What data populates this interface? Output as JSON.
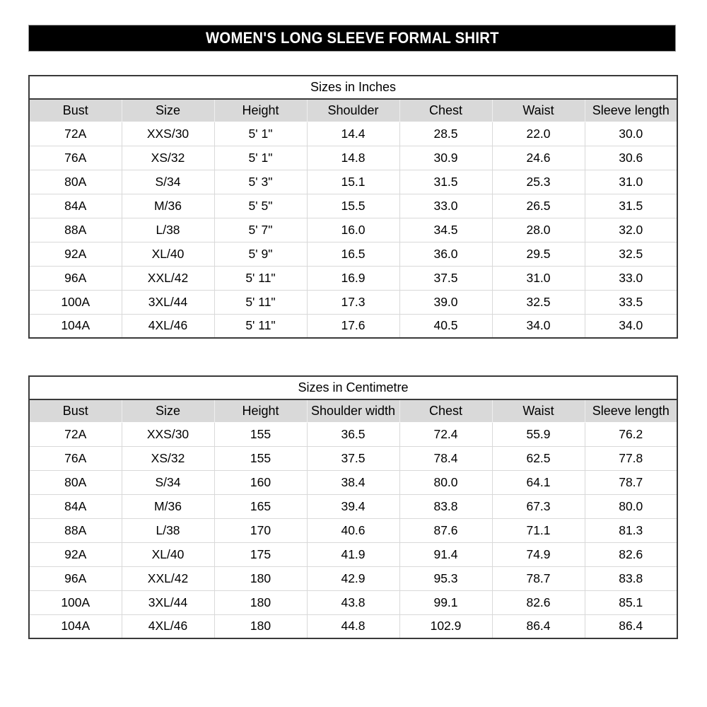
{
  "title": "WOMEN'S LONG SLEEVE FORMAL SHIRT",
  "colors": {
    "banner_bg": "#000000",
    "banner_text": "#ffffff",
    "header_row_bg": "#d9d9d9",
    "outer_border": "#3a3a3a",
    "grid_line": "#d9d9d9"
  },
  "tables": [
    {
      "caption": "Sizes in Inches",
      "columns": [
        "Bust",
        "Size",
        "Height",
        "Shoulder",
        "Chest",
        "Waist",
        "Sleeve length"
      ],
      "rows": [
        [
          "72A",
          "XXS/30",
          "5' 1\"",
          "14.4",
          "28.5",
          "22.0",
          "30.0"
        ],
        [
          "76A",
          "XS/32",
          "5' 1\"",
          "14.8",
          "30.9",
          "24.6",
          "30.6"
        ],
        [
          "80A",
          "S/34",
          "5' 3\"",
          "15.1",
          "31.5",
          "25.3",
          "31.0"
        ],
        [
          "84A",
          "M/36",
          "5' 5\"",
          "15.5",
          "33.0",
          "26.5",
          "31.5"
        ],
        [
          "88A",
          "L/38",
          "5' 7\"",
          "16.0",
          "34.5",
          "28.0",
          "32.0"
        ],
        [
          "92A",
          "XL/40",
          "5' 9\"",
          "16.5",
          "36.0",
          "29.5",
          "32.5"
        ],
        [
          "96A",
          "XXL/42",
          "5' 11\"",
          "16.9",
          "37.5",
          "31.0",
          "33.0"
        ],
        [
          "100A",
          "3XL/44",
          "5' 11\"",
          "17.3",
          "39.0",
          "32.5",
          "33.5"
        ],
        [
          "104A",
          "4XL/46",
          "5' 11\"",
          "17.6",
          "40.5",
          "34.0",
          "34.0"
        ]
      ]
    },
    {
      "caption": "Sizes in Centimetre",
      "columns": [
        "Bust",
        "Size",
        "Height",
        "Shoulder width",
        "Chest",
        "Waist",
        "Sleeve length"
      ],
      "rows": [
        [
          "72A",
          "XXS/30",
          "155",
          "36.5",
          "72.4",
          "55.9",
          "76.2"
        ],
        [
          "76A",
          "XS/32",
          "155",
          "37.5",
          "78.4",
          "62.5",
          "77.8"
        ],
        [
          "80A",
          "S/34",
          "160",
          "38.4",
          "80.0",
          "64.1",
          "78.7"
        ],
        [
          "84A",
          "M/36",
          "165",
          "39.4",
          "83.8",
          "67.3",
          "80.0"
        ],
        [
          "88A",
          "L/38",
          "170",
          "40.6",
          "87.6",
          "71.1",
          "81.3"
        ],
        [
          "92A",
          "XL/40",
          "175",
          "41.9",
          "91.4",
          "74.9",
          "82.6"
        ],
        [
          "96A",
          "XXL/42",
          "180",
          "42.9",
          "95.3",
          "78.7",
          "83.8"
        ],
        [
          "100A",
          "3XL/44",
          "180",
          "43.8",
          "99.1",
          "82.6",
          "85.1"
        ],
        [
          "104A",
          "4XL/46",
          "180",
          "44.8",
          "102.9",
          "86.4",
          "86.4"
        ]
      ]
    }
  ]
}
